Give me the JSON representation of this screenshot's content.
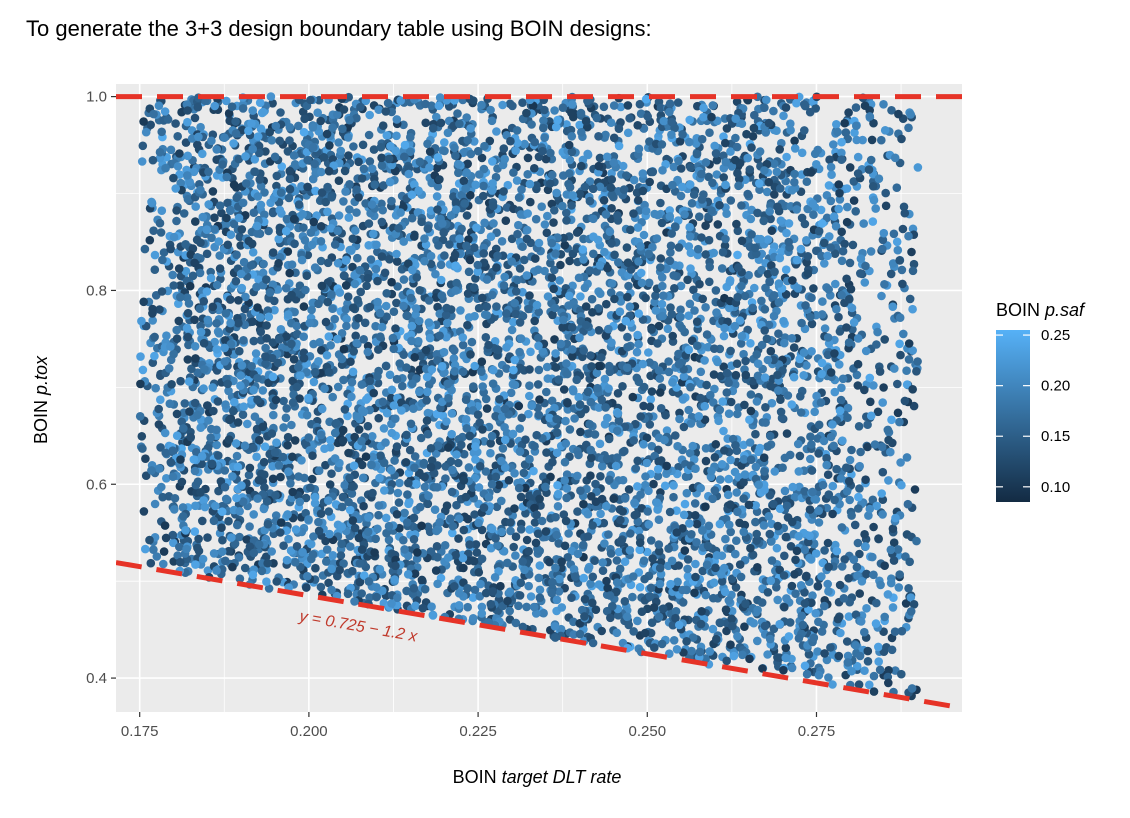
{
  "page": {
    "title": "To generate the 3+3 design boundary table using BOIN designs:"
  },
  "chart_data": {
    "type": "scatter",
    "title": "To generate the 3+3 design boundary table using BOIN designs:",
    "xlabel_prefix": "BOIN",
    "xlabel_italic": "target DLT rate",
    "ylabel_prefix": "BOIN",
    "ylabel_italic": "p.tox",
    "xlim": [
      0.1715,
      0.2965
    ],
    "ylim": [
      0.365,
      1.013
    ],
    "x_ticks": [
      0.175,
      0.2,
      0.225,
      0.25,
      0.275
    ],
    "x_tick_labels": [
      "0.175",
      "0.200",
      "0.225",
      "0.250",
      "0.275"
    ],
    "y_ticks": [
      0.4,
      0.6,
      0.8,
      1.0
    ],
    "y_tick_labels": [
      "0.4",
      "0.6",
      "0.8",
      "1.0"
    ],
    "grid": true,
    "background": "#ebebeb",
    "points_region": {
      "x_range": [
        0.175,
        0.29
      ],
      "y_upper": 1.0,
      "y_lower_line": {
        "intercept": 0.725,
        "slope": -1.2
      },
      "approx_point_count": 6500,
      "color_variable_range": [
        0.085,
        0.255
      ]
    },
    "reference_lines": [
      {
        "name": "upper",
        "type": "horizontal",
        "y": 1.0,
        "color": "#e63327",
        "style": "dashed"
      },
      {
        "name": "lower",
        "type": "abline",
        "intercept": 0.725,
        "slope": -1.2,
        "color": "#e63327",
        "style": "dashed"
      }
    ],
    "annotations": [
      {
        "text": "y = 0.725 − 1.2 x",
        "x": 0.1985,
        "y": 0.459,
        "color": "#c0392b",
        "angle_deg": 10
      }
    ],
    "legend": {
      "title_prefix": "BOIN",
      "title_italic": "p.saf",
      "placement": "right",
      "type": "gradient",
      "low_color": "#132b43",
      "high_color": "#56b1f7",
      "range": [
        0.085,
        0.255
      ],
      "ticks": [
        0.1,
        0.15,
        0.2,
        0.25
      ],
      "tick_labels": [
        "0.10",
        "0.15",
        "0.20",
        "0.25"
      ]
    }
  }
}
